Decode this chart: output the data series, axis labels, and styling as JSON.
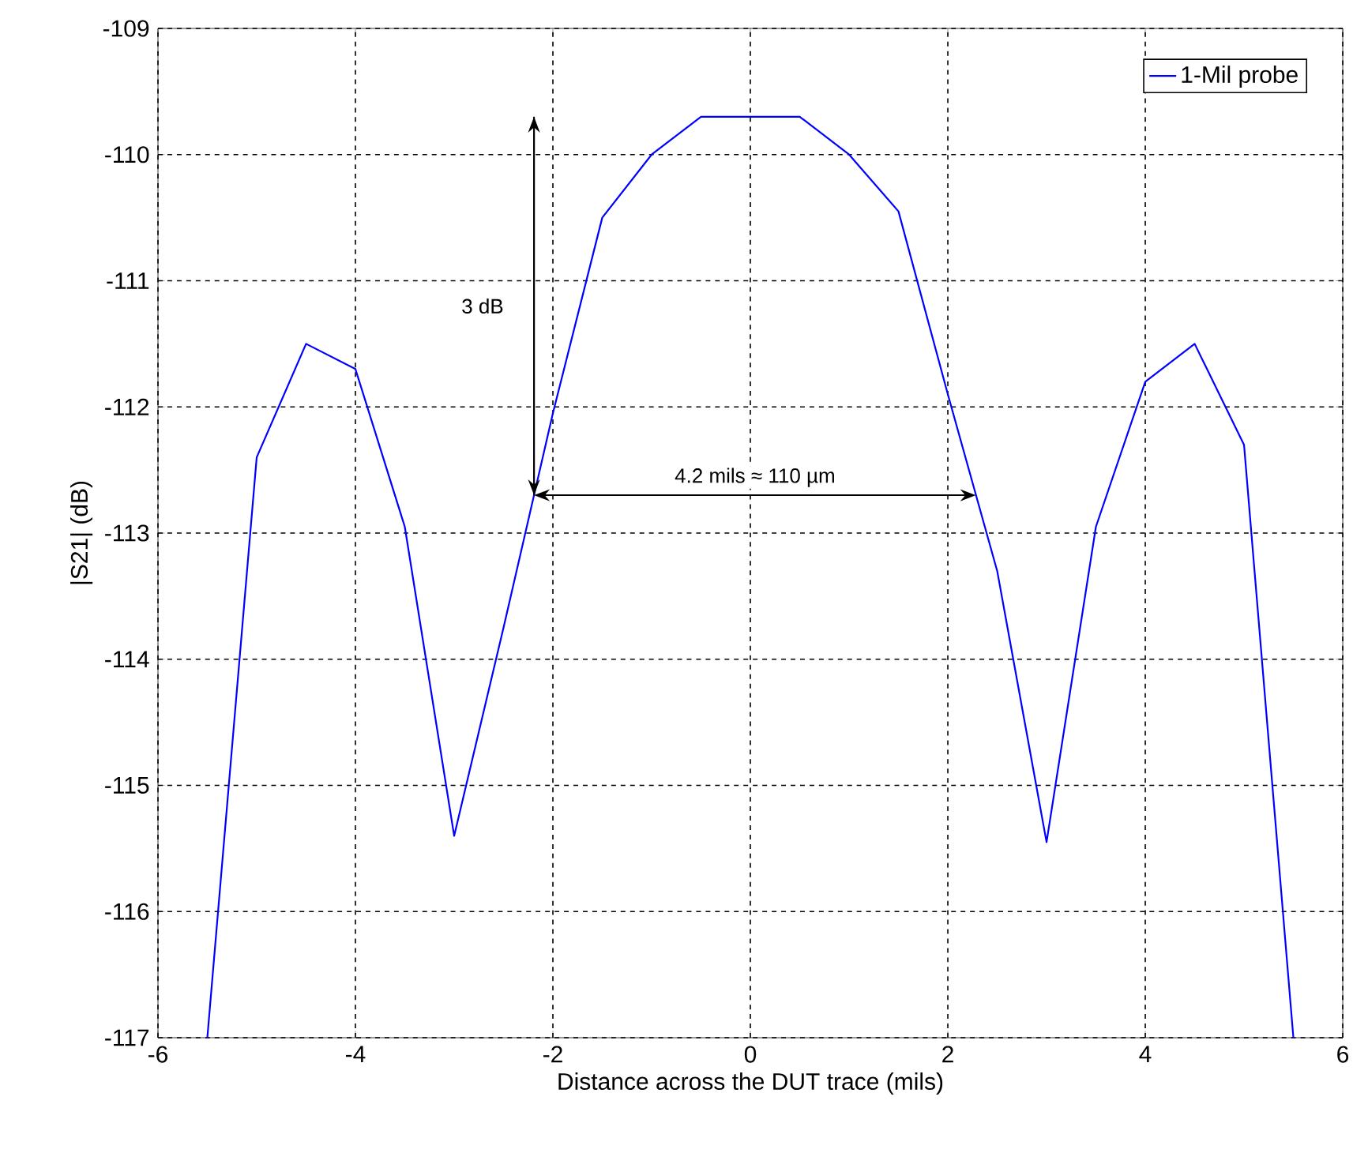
{
  "chart_data": {
    "type": "line",
    "xlabel": "Distance across the DUT trace (mils)",
    "ylabel": "|S21| (dB)",
    "x": [
      -5.5,
      -5,
      -4.5,
      -4,
      -3.5,
      -3,
      -2.5,
      -2,
      -1.5,
      -1,
      -0.5,
      0,
      0.5,
      1,
      1.5,
      2,
      2.5,
      3,
      3.5,
      4,
      4.5,
      5,
      5.5
    ],
    "series": [
      {
        "name": "1-Mil probe",
        "color": "#0000ff",
        "values": [
          -117,
          -112.4,
          -111.5,
          -111.7,
          -112.95,
          -115.4,
          -113.75,
          -112.05,
          -110.5,
          -110.0,
          -109.7,
          -109.7,
          -109.7,
          -110.0,
          -110.45,
          -111.9,
          -113.3,
          -115.45,
          -112.95,
          -111.8,
          -111.5,
          -112.3,
          -117
        ]
      }
    ],
    "xlim": [
      -6,
      6
    ],
    "ylim": [
      -117,
      -109
    ],
    "xticks": [
      -6,
      -4,
      -2,
      0,
      2,
      4,
      6
    ],
    "yticks": [
      -117,
      -116,
      -115,
      -114,
      -113,
      -112,
      -111,
      -110,
      -109
    ],
    "grid": true,
    "legend": "top right",
    "marker": "none",
    "line_style": "solid",
    "annotations": [
      "3 dB",
      "4.2 mils ≈ 110 µm"
    ]
  }
}
